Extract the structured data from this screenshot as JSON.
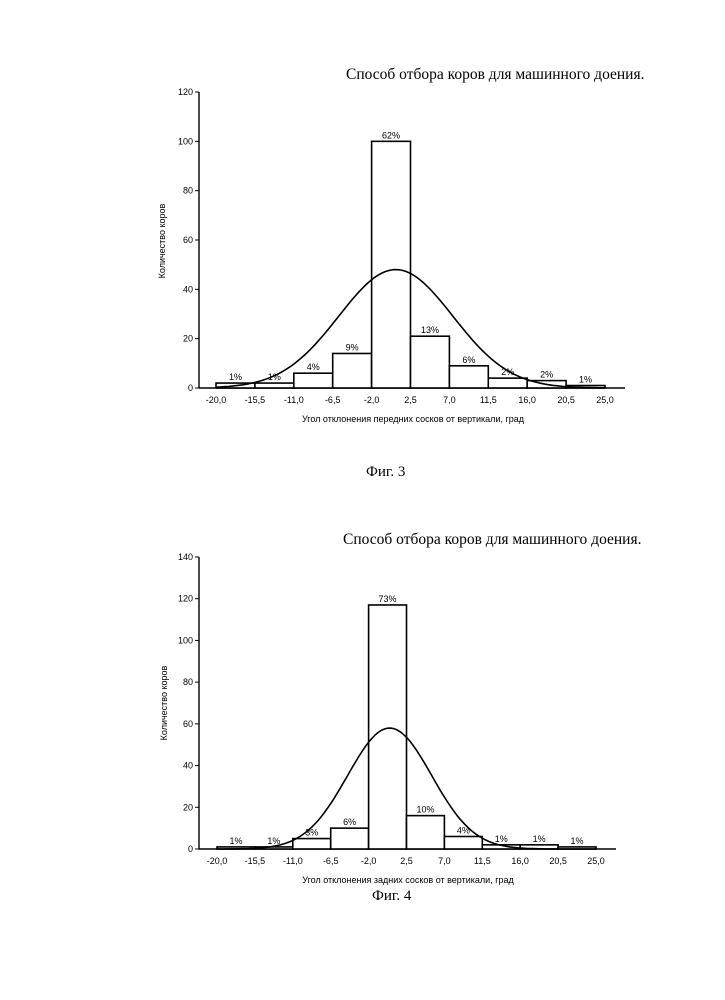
{
  "figures": [
    {
      "title": "Способ отбора коров для машинного доения.",
      "caption": "Фиг. 3"
    },
    {
      "title": "Способ отбора коров для машинного доения.",
      "caption": "Фиг. 4"
    }
  ],
  "chart_data": [
    {
      "type": "bar",
      "title": "Способ отбора коров для машинного доения.",
      "xlabel": "Угол отклонения передних сосков от вертикали, град",
      "ylabel": "Количество коров",
      "x_ticks": [
        "-20,0",
        "-15,5",
        "-11,0",
        "-6,5",
        "-2,0",
        "2,5",
        "7,0",
        "11,5",
        "16,0",
        "20,5",
        "25,0"
      ],
      "y_ticks": [
        0,
        20,
        40,
        60,
        80,
        100,
        120
      ],
      "ylim": [
        0,
        120
      ],
      "bin_edges": [
        -20.0,
        -15.5,
        -11.0,
        -6.5,
        -2.0,
        2.5,
        7.0,
        11.5,
        16.0,
        20.5,
        25.0
      ],
      "values": [
        2,
        2,
        6,
        14,
        100,
        21,
        9,
        4,
        3,
        1
      ],
      "bar_labels": [
        "1%",
        "1%",
        "4%",
        "9%",
        "62%",
        "13%",
        "6%",
        "2%",
        "2%",
        "1%"
      ],
      "normal_curve": {
        "mean": 0.8,
        "sd": 6.6,
        "peak": 48
      },
      "grid": false,
      "legend": "none",
      "caption": "Фиг. 3"
    },
    {
      "type": "bar",
      "title": "Способ отбора коров для машинного доения.",
      "xlabel": "Угол отклонения задних сосков от вертикали, град",
      "ylabel": "Количество коров",
      "x_ticks": [
        "-20,0",
        "-15,5",
        "-11,0",
        "-6,5",
        "-2,0",
        "2,5",
        "7,0",
        "11,5",
        "16,0",
        "20,5",
        "25,0"
      ],
      "y_ticks": [
        0,
        20,
        40,
        60,
        80,
        100,
        120,
        140
      ],
      "ylim": [
        0,
        140
      ],
      "bin_edges": [
        -20.0,
        -15.5,
        -11.0,
        -6.5,
        -2.0,
        2.5,
        7.0,
        11.5,
        16.0,
        20.5,
        25.0
      ],
      "values": [
        1,
        1,
        5,
        10,
        117,
        16,
        6,
        2,
        2,
        1
      ],
      "bar_labels": [
        "1%",
        "1%",
        "3%",
        "6%",
        "73%",
        "10%",
        "4%",
        "1%",
        "1%",
        "1%"
      ],
      "normal_curve": {
        "mean": 0.5,
        "sd": 5.0,
        "peak": 58
      },
      "grid": false,
      "legend": "none",
      "caption": "Фиг. 4"
    }
  ]
}
